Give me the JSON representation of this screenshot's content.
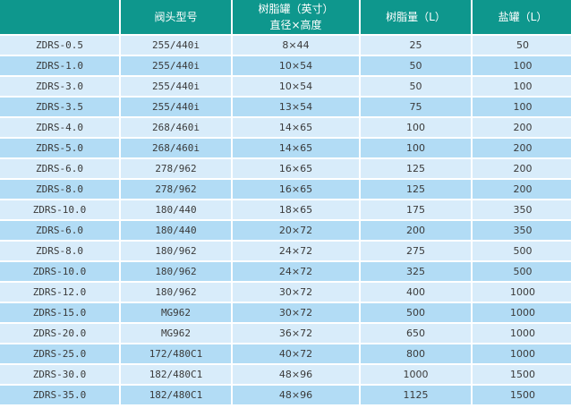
{
  "colors": {
    "header_bg": "#0e978d",
    "header_text": "#ffffff",
    "row_light": "#d8ecfa",
    "row_dark": "#b2dcf5",
    "cell_text": "#3a3a3a"
  },
  "table": {
    "headers": [
      {
        "line1": "",
        "line2": ""
      },
      {
        "line1": "阀头型号",
        "line2": ""
      },
      {
        "line1": "树脂罐（英寸）",
        "line2": "直径×高度"
      },
      {
        "line1": "树脂量（L）",
        "line2": ""
      },
      {
        "line1": "盐罐（L）",
        "line2": ""
      }
    ],
    "rows": [
      {
        "model": "ZDRS-0.5",
        "valve": "255/440i",
        "tank": "8×44",
        "resin": "25",
        "brine": "50"
      },
      {
        "model": "ZDRS-1.0",
        "valve": "255/440i",
        "tank": "10×54",
        "resin": "50",
        "brine": "100"
      },
      {
        "model": "ZDRS-3.0",
        "valve": "255/440i",
        "tank": "10×54",
        "resin": "50",
        "brine": "100"
      },
      {
        "model": "ZDRS-3.5",
        "valve": "255/440i",
        "tank": "13×54",
        "resin": "75",
        "brine": "100"
      },
      {
        "model": "ZDRS-4.0",
        "valve": "268/460i",
        "tank": "14×65",
        "resin": "100",
        "brine": "200"
      },
      {
        "model": "ZDRS-5.0",
        "valve": "268/460i",
        "tank": "14×65",
        "resin": "100",
        "brine": "200"
      },
      {
        "model": "ZDRS-6.0",
        "valve": "278/962",
        "tank": "16×65",
        "resin": "125",
        "brine": "200"
      },
      {
        "model": "ZDRS-8.0",
        "valve": "278/962",
        "tank": "16×65",
        "resin": "125",
        "brine": "200"
      },
      {
        "model": "ZDRS-10.0",
        "valve": "180/440",
        "tank": "18×65",
        "resin": "175",
        "brine": "350"
      },
      {
        "model": "ZDRS-6.0",
        "valve": "180/440",
        "tank": "20×72",
        "resin": "200",
        "brine": "350"
      },
      {
        "model": "ZDRS-8.0",
        "valve": "180/962",
        "tank": "24×72",
        "resin": "275",
        "brine": "500"
      },
      {
        "model": "ZDRS-10.0",
        "valve": "180/962",
        "tank": "24×72",
        "resin": "325",
        "brine": "500"
      },
      {
        "model": "ZDRS-12.0",
        "valve": "180/962",
        "tank": "30×72",
        "resin": "400",
        "brine": "1000"
      },
      {
        "model": "ZDRS-15.0",
        "valve": "MG962",
        "tank": "30×72",
        "resin": "500",
        "brine": "1000"
      },
      {
        "model": "ZDRS-20.0",
        "valve": "MG962",
        "tank": "36×72",
        "resin": "650",
        "brine": "1000"
      },
      {
        "model": "ZDRS-25.0",
        "valve": "172/480C1",
        "tank": "40×72",
        "resin": "800",
        "brine": "1000"
      },
      {
        "model": "ZDRS-30.0",
        "valve": "182/480C1",
        "tank": "48×96",
        "resin": "1000",
        "brine": "1500"
      },
      {
        "model": "ZDRS-35.0",
        "valve": "182/480C1",
        "tank": "48×96",
        "resin": "1125",
        "brine": "1500"
      }
    ]
  }
}
